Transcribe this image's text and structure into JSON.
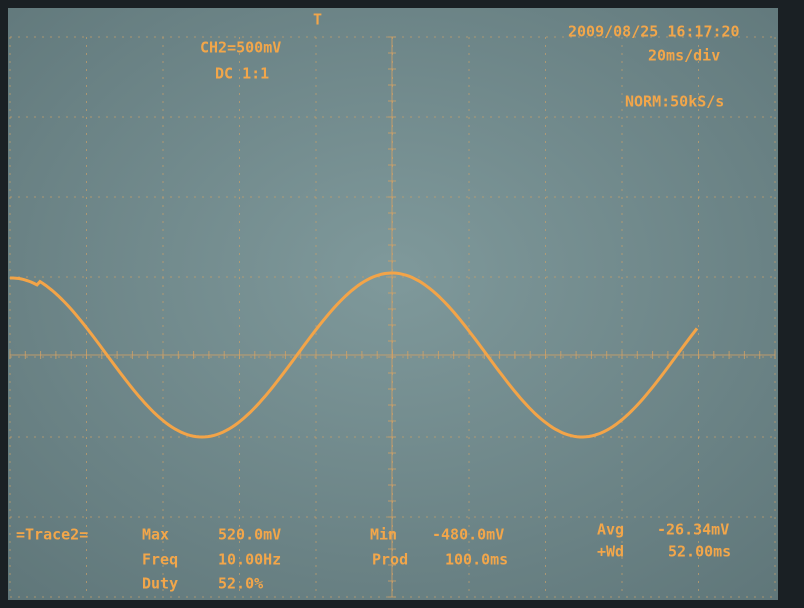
{
  "header": {
    "trigger_marker": "T",
    "channel": "CH2=500mV",
    "coupling": "DC 1:1",
    "datetime": "2009/08/25 16:17:20",
    "timebase": "20ms/div",
    "acquisition": "NORM:50kS/s"
  },
  "measurements": {
    "trace": "=Trace2=",
    "rows": [
      [
        [
          "Max",
          "520.0mV"
        ],
        [
          "Min",
          "-480.0mV"
        ],
        [
          "Avg",
          "-26.34mV"
        ]
      ],
      [
        [
          "Freq",
          "10.00Hz"
        ],
        [
          "Prod",
          "100.0ms"
        ],
        [
          "+Wd",
          "52.00ms"
        ]
      ],
      [
        [
          "Duty",
          "52.0%"
        ]
      ]
    ]
  }
}
